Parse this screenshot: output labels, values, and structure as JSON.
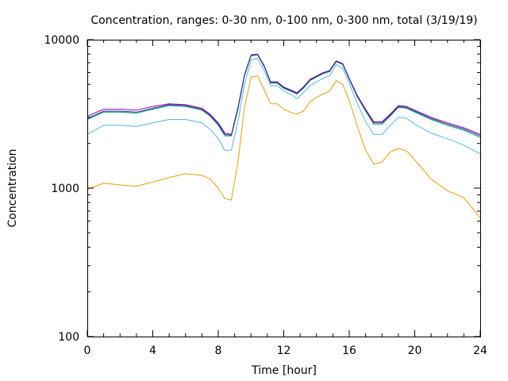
{
  "chart_data": {
    "type": "line",
    "title": "Concentration, ranges: 0-30 nm, 0-100 nm, 0-300 nm, total (3/19/19)",
    "xlabel": "Time [hour]",
    "ylabel": "Concentration",
    "xlim": [
      0,
      24
    ],
    "ylim": [
      100,
      10000
    ],
    "yscale": "log",
    "grid": false,
    "legend": "none",
    "x_ticks": [
      "0",
      "4",
      "8",
      "12",
      "16",
      "20",
      "24"
    ],
    "y_ticks": [
      "100",
      "1000",
      "10000"
    ],
    "x": [
      0,
      1,
      2,
      3,
      4,
      5,
      6,
      7,
      7.5,
      8,
      8.4,
      8.8,
      9.2,
      9.6,
      10,
      10.4,
      10.8,
      11.2,
      11.6,
      12,
      12.4,
      12.8,
      13.2,
      13.6,
      14,
      14.4,
      14.8,
      15.2,
      15.6,
      16,
      16.5,
      17,
      17.5,
      18,
      18.5,
      19,
      19.5,
      20,
      21,
      22,
      23,
      24
    ],
    "series": [
      {
        "color": "#e69f00",
        "values": [
          980,
          1080,
          1050,
          1030,
          1100,
          1180,
          1250,
          1220,
          1150,
          1000,
          850,
          830,
          1500,
          3500,
          5600,
          5700,
          4600,
          3700,
          3700,
          3400,
          3250,
          3150,
          3300,
          3800,
          4100,
          4300,
          4500,
          5300,
          5000,
          3900,
          2600,
          1800,
          1450,
          1500,
          1750,
          1850,
          1780,
          1550,
          1150,
          960,
          860,
          630
        ]
      },
      {
        "color": "#56b4e9",
        "values": [
          2300,
          2650,
          2650,
          2600,
          2750,
          2900,
          2900,
          2750,
          2500,
          2150,
          1800,
          1800,
          2800,
          5000,
          7300,
          7500,
          6200,
          4900,
          4900,
          4500,
          4300,
          4000,
          4400,
          4900,
          5200,
          5500,
          5700,
          6800,
          6400,
          5100,
          3700,
          2800,
          2300,
          2300,
          2650,
          3000,
          2950,
          2700,
          2350,
          2150,
          1950,
          1700
        ]
      },
      {
        "color": "#009e73",
        "values": [
          2900,
          3250,
          3250,
          3200,
          3400,
          3600,
          3550,
          3350,
          3050,
          2650,
          2250,
          2250,
          3400,
          5700,
          7800,
          7900,
          6600,
          5100,
          5100,
          4700,
          4500,
          4300,
          4700,
          5300,
          5600,
          5900,
          6100,
          7100,
          6800,
          5400,
          4100,
          3300,
          2700,
          2700,
          3050,
          3500,
          3450,
          3250,
          2900,
          2650,
          2450,
          2200
        ]
      },
      {
        "color": "#9400d3",
        "values": [
          3050,
          3400,
          3400,
          3350,
          3550,
          3700,
          3650,
          3450,
          3150,
          2750,
          2350,
          2300,
          3500,
          5800,
          7900,
          8000,
          6700,
          5200,
          5200,
          4800,
          4600,
          4400,
          4800,
          5400,
          5700,
          6000,
          6200,
          7200,
          6900,
          5500,
          4200,
          3400,
          2800,
          2800,
          3150,
          3600,
          3550,
          3350,
          3000,
          2750,
          2550,
          2300
        ]
      },
      {
        "color": "#2a3a7a",
        "values": [
          2950,
          3300,
          3300,
          3250,
          3450,
          3650,
          3600,
          3400,
          3100,
          2700,
          2300,
          2270,
          3450,
          5750,
          7850,
          7950,
          6650,
          5150,
          5150,
          4750,
          4550,
          4350,
          4750,
          5350,
          5650,
          5950,
          6150,
          7150,
          6850,
          5450,
          4150,
          3350,
          2750,
          2750,
          3100,
          3550,
          3500,
          3300,
          2950,
          2700,
          2500,
          2250
        ]
      }
    ]
  }
}
